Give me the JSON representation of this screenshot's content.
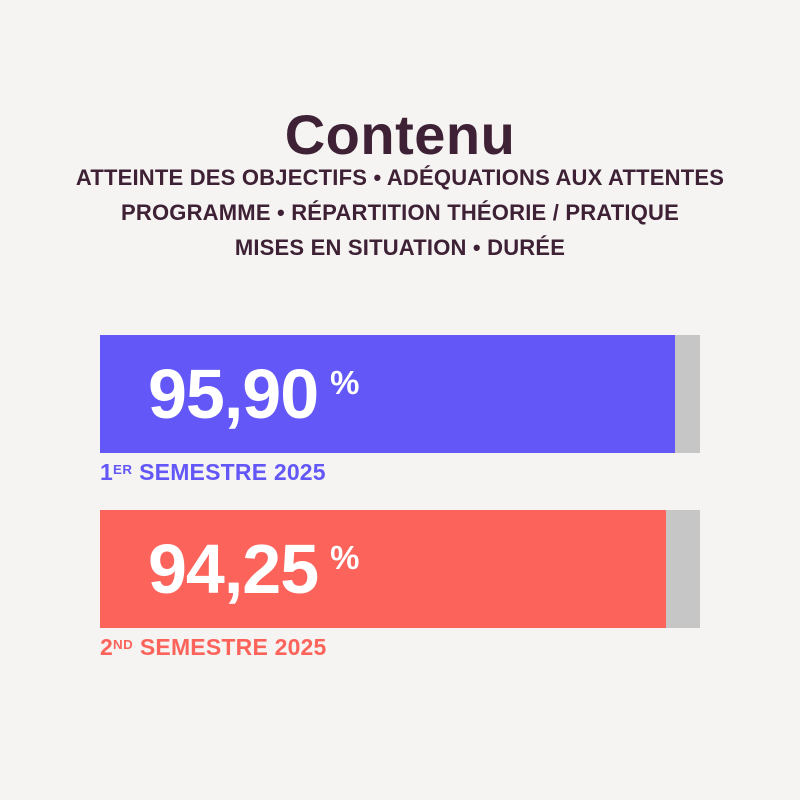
{
  "page": {
    "background_color": "#f5f4f2"
  },
  "header": {
    "title": "Contenu",
    "title_color": "#3e2135",
    "subtitle_lines": [
      "ATTEINTE DES OBJECTIFS • ADÉQUATIONS AUX ATTENTES",
      "PROGRAMME • RÉPARTITION THÉORIE / PRATIQUE",
      "MISES EN SITUATION • DURÉE"
    ],
    "subtitle_color": "#3e2135"
  },
  "chart_data": {
    "type": "bar",
    "orientation": "horizontal",
    "title": "Contenu",
    "categories": [
      "1er Semestre 2025",
      "2nd Semestre 2025"
    ],
    "values": [
      95.9,
      94.25
    ],
    "unit": "%",
    "xlim": [
      0,
      100
    ],
    "track_color": "#c6c6c6",
    "bars": [
      {
        "value": 95.9,
        "value_display": "95,90",
        "unit": "%",
        "label_number": "1",
        "label_ordinal": "ER",
        "label_text": "SEMESTRE 2025",
        "fill_color": "#6357f7",
        "label_color": "#6357f7"
      },
      {
        "value": 94.25,
        "value_display": "94,25",
        "unit": "%",
        "label_number": "2",
        "label_ordinal": "ND",
        "label_text": "SEMESTRE 2025",
        "fill_color": "#fc635b",
        "label_color": "#fc635b"
      }
    ]
  }
}
